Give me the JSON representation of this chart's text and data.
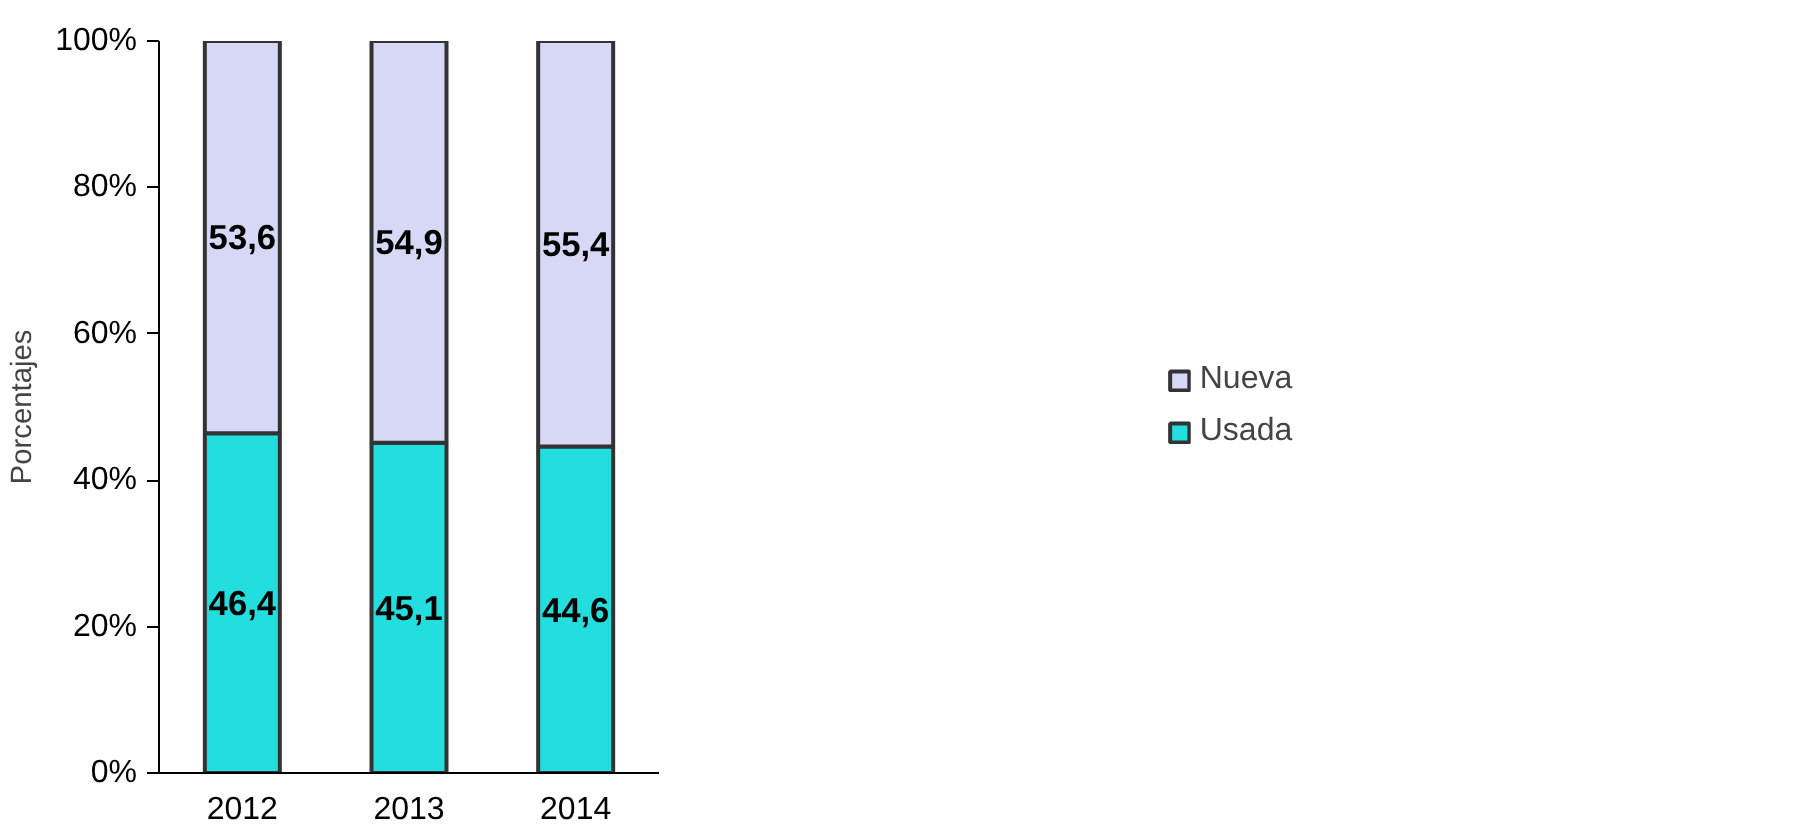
{
  "chart_data": {
    "type": "bar",
    "stacked": true,
    "ylabel": "Porcentajes",
    "categories": [
      "2012",
      "2013",
      "2014"
    ],
    "series": [
      {
        "name": "Usada",
        "color": "#22dede",
        "values": [
          46.4,
          45.1,
          44.6
        ],
        "value_labels": [
          "46,4",
          "45,1",
          "44,6"
        ]
      },
      {
        "name": "Nueva",
        "color": "#d6d8f6",
        "values": [
          53.6,
          54.9,
          55.4
        ],
        "value_labels": [
          "53,6",
          "54,9",
          "55,4"
        ]
      }
    ],
    "ylim": [
      0,
      100
    ],
    "yticks": [
      {
        "value": 0,
        "label": "0%"
      },
      {
        "value": 20,
        "label": "20%"
      },
      {
        "value": 40,
        "label": "40%"
      },
      {
        "value": 60,
        "label": "60%"
      },
      {
        "value": 80,
        "label": "80%"
      },
      {
        "value": 100,
        "label": "100%"
      }
    ],
    "grid": false,
    "legend": "right"
  }
}
